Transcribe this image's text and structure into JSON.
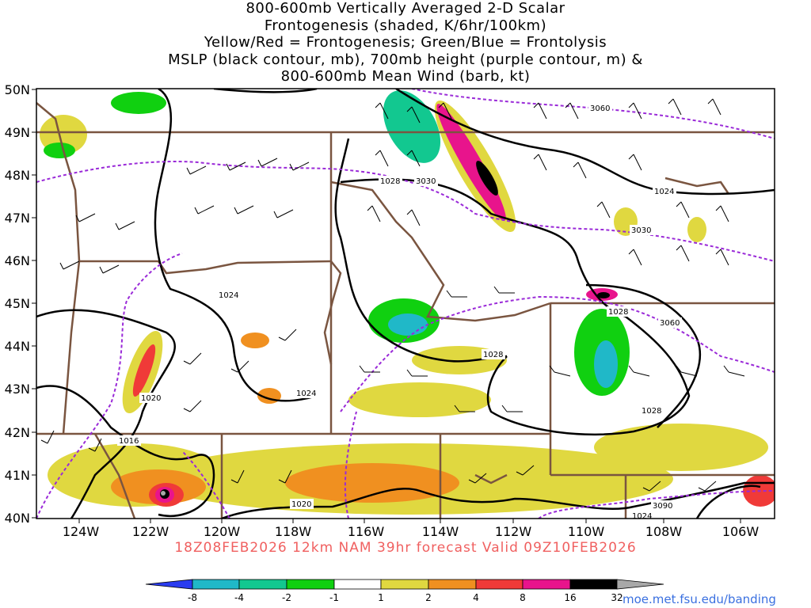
{
  "title_lines": [
    "800-600mb Vertically Averaged 2-D Scalar",
    "Frontogenesis (shaded, K/6hr/100km)",
    "Yellow/Red = Frontogenesis;  Green/Blue = Frontolysis",
    "MSLP (black contour, mb), 700mb height (purple contour, m) &",
    "800-600mb Mean Wind (barb, kt)"
  ],
  "lat_labels": [
    "50N",
    "49N",
    "48N",
    "47N",
    "46N",
    "45N",
    "44N",
    "43N",
    "42N",
    "41N",
    "40N"
  ],
  "lon_labels": [
    "124W",
    "122W",
    "120W",
    "118W",
    "116W",
    "114W",
    "112W",
    "110W",
    "108W",
    "106W"
  ],
  "forecast_line": "18Z08FEB2026 12km NAM 39hr forecast Valid 09Z10FEB2026",
  "credit": "moe.met.fsu.edu/banding",
  "colorbar": {
    "labels": [
      "-8",
      "-4",
      "-2",
      "-1",
      "1",
      "2",
      "4",
      "8",
      "16",
      "32"
    ],
    "colors": [
      "#2a3cf0",
      "#20b8c8",
      "#12c890",
      "#10d010",
      "#ffffff",
      "#e0d840",
      "#f09020",
      "#f03a38",
      "#e8148c",
      "#000000",
      "#a8a8a8"
    ]
  },
  "mslp_labels": [
    "1028",
    "1024",
    "1024",
    "1024",
    "1020",
    "1016",
    "1020",
    "1028",
    "1028",
    "1028",
    "1024"
  ],
  "height_labels": [
    "3060",
    "3030",
    "3030",
    "3060",
    "3090"
  ],
  "colors": {
    "mslp": "#000000",
    "height": "#9a2ad8",
    "borders": "#7a5540",
    "forecast": "#f06060",
    "credit": "#3a70e0"
  }
}
